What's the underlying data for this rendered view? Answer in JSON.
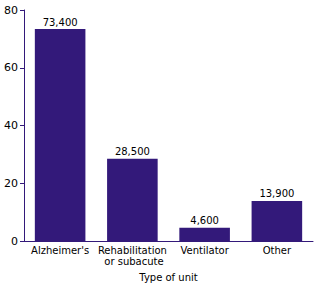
{
  "chart_data": {
    "type": "bar",
    "categories": [
      "Alzheimer's",
      "Rehabilitation or subacute",
      "Ventilator",
      "Other"
    ],
    "values": [
      73.4,
      28.5,
      4.6,
      13.9
    ],
    "value_labels": [
      "73,400",
      "28,500",
      "4,600",
      "13,900"
    ],
    "data_labels": true,
    "color": "#33197a",
    "x_label": "Type of unit",
    "ylim": [
      0,
      80
    ],
    "yticks": [
      0,
      20,
      40,
      60,
      80
    ],
    "grid": false
  }
}
